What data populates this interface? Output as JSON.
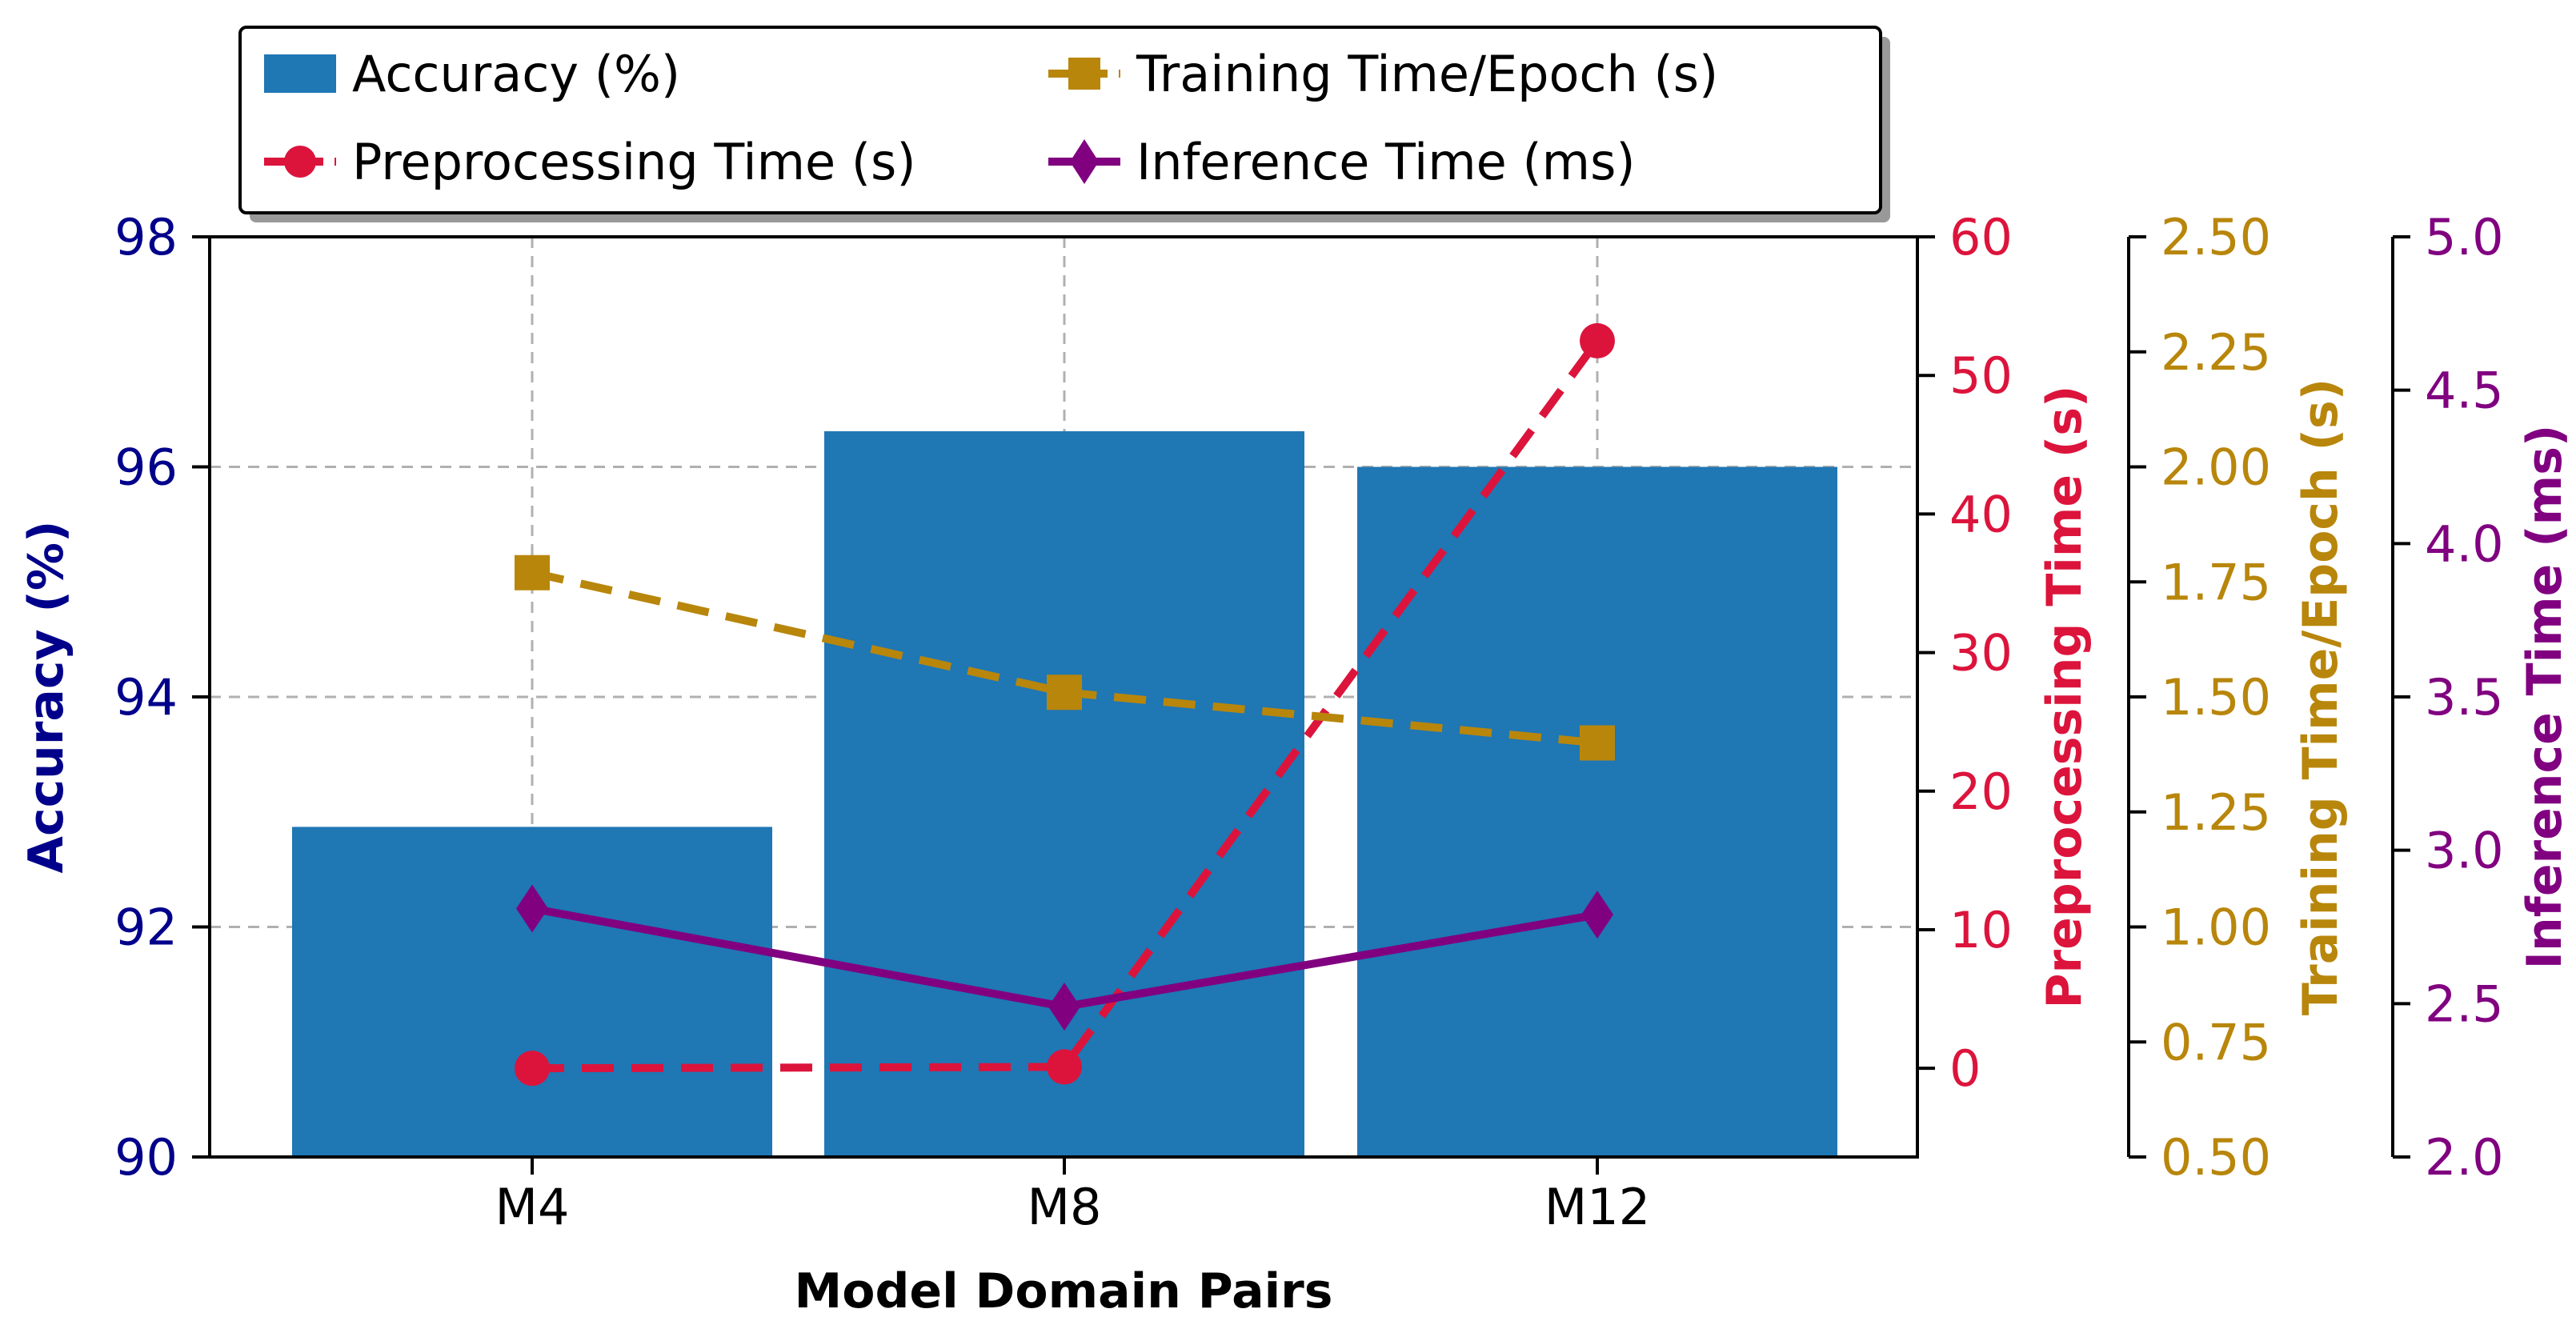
{
  "chart_data": {
    "type": "bar",
    "categories": [
      "M4",
      "M8",
      "M12"
    ],
    "xlabel": "Model Domain Pairs",
    "series": [
      {
        "name": "Accuracy (%)",
        "kind": "bar",
        "axis": "accuracy",
        "color": "#1f77b4",
        "values": [
          92.87,
          96.31,
          96.0
        ]
      },
      {
        "name": "Preprocessing Time (s)",
        "kind": "line",
        "axis": "preprocessing",
        "color": "#dc143c",
        "marker": "circle",
        "linestyle": "dashed",
        "values": [
          0.0,
          0.1,
          52.5
        ]
      },
      {
        "name": "Training Time/Epoch (s)",
        "kind": "line",
        "axis": "training",
        "color": "#b8860b",
        "marker": "square",
        "linestyle": "dashed",
        "values": [
          1.77,
          1.51,
          1.4
        ]
      },
      {
        "name": "Inference Time (ms)",
        "kind": "line",
        "axis": "inference",
        "color": "#800080",
        "marker": "diamond",
        "linestyle": "solid",
        "values": [
          2.81,
          2.49,
          2.79
        ]
      }
    ],
    "axes": {
      "accuracy": {
        "label": "Accuracy (%)",
        "color": "#00008b",
        "range": [
          90,
          98
        ],
        "ticks": [
          "90",
          "92",
          "94",
          "96",
          "98"
        ]
      },
      "preprocessing": {
        "label": "Preprocessing Time (s)",
        "color": "#dc143c",
        "range": [
          -6.4,
          60
        ],
        "ticks": [
          "0",
          "10",
          "20",
          "30",
          "40",
          "50",
          "60"
        ]
      },
      "training": {
        "label": "Training Time/Epoch (s)",
        "color": "#b8860b",
        "range": [
          0.5,
          2.5
        ],
        "ticks": [
          "0.50",
          "0.75",
          "1.00",
          "1.25",
          "1.50",
          "1.75",
          "2.00",
          "2.25",
          "2.50"
        ]
      },
      "inference": {
        "label": "Inference Time (ms)",
        "color": "#800080",
        "range": [
          2.0,
          5.0
        ],
        "ticks": [
          "2.0",
          "2.5",
          "3.0",
          "3.5",
          "4.0",
          "4.5",
          "5.0"
        ]
      }
    },
    "grid": true,
    "legend_position": "top"
  }
}
